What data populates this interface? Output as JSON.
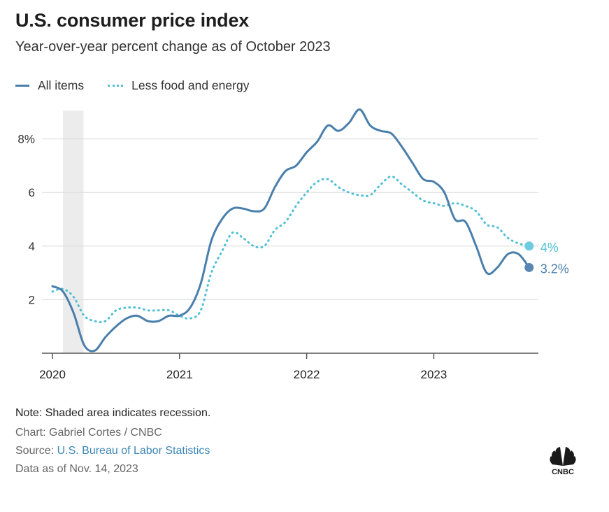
{
  "header": {
    "title": "U.S. consumer price index",
    "subtitle": "Year-over-year percent change as of October 2023"
  },
  "legend": {
    "items": [
      {
        "label": "All items",
        "style": "solid",
        "color": "#4a7fab"
      },
      {
        "label": "Less food and energy",
        "style": "dotted",
        "color": "#50c0d6"
      }
    ]
  },
  "chart_data": {
    "type": "line",
    "title": "U.S. consumer price index",
    "subtitle": "Year-over-year percent change as of October 2023",
    "xlabel": "",
    "ylabel": "",
    "x_ticks": [
      "2020",
      "2021",
      "2022",
      "2023"
    ],
    "y_ticks": [
      {
        "value": 2,
        "label": "2"
      },
      {
        "value": 4,
        "label": "4"
      },
      {
        "value": 6,
        "label": "6"
      },
      {
        "value": 8,
        "label": "8%"
      }
    ],
    "ylim": [
      0,
      9.5
    ],
    "grid": true,
    "legend_position": "top-left",
    "recession_band": {
      "start": "2020-02",
      "end": "2020-04"
    },
    "series": [
      {
        "name": "All items",
        "color": "#4a7fab",
        "end_label": "3.2%",
        "points": [
          [
            "2020-01",
            2.5
          ],
          [
            "2020-02",
            2.3
          ],
          [
            "2020-03",
            1.5
          ],
          [
            "2020-04",
            0.3
          ],
          [
            "2020-05",
            0.1
          ],
          [
            "2020-06",
            0.6
          ],
          [
            "2020-07",
            1.0
          ],
          [
            "2020-08",
            1.3
          ],
          [
            "2020-09",
            1.4
          ],
          [
            "2020-10",
            1.2
          ],
          [
            "2020-11",
            1.2
          ],
          [
            "2020-12",
            1.4
          ],
          [
            "2021-01",
            1.4
          ],
          [
            "2021-02",
            1.7
          ],
          [
            "2021-03",
            2.6
          ],
          [
            "2021-04",
            4.2
          ],
          [
            "2021-05",
            5.0
          ],
          [
            "2021-06",
            5.4
          ],
          [
            "2021-07",
            5.4
          ],
          [
            "2021-08",
            5.3
          ],
          [
            "2021-09",
            5.4
          ],
          [
            "2021-10",
            6.2
          ],
          [
            "2021-11",
            6.8
          ],
          [
            "2021-12",
            7.0
          ],
          [
            "2022-01",
            7.5
          ],
          [
            "2022-02",
            7.9
          ],
          [
            "2022-03",
            8.5
          ],
          [
            "2022-04",
            8.3
          ],
          [
            "2022-05",
            8.6
          ],
          [
            "2022-06",
            9.1
          ],
          [
            "2022-07",
            8.5
          ],
          [
            "2022-08",
            8.3
          ],
          [
            "2022-09",
            8.2
          ],
          [
            "2022-10",
            7.7
          ],
          [
            "2022-11",
            7.1
          ],
          [
            "2022-12",
            6.5
          ],
          [
            "2023-01",
            6.4
          ],
          [
            "2023-02",
            6.0
          ],
          [
            "2023-03",
            5.0
          ],
          [
            "2023-04",
            4.9
          ],
          [
            "2023-05",
            4.0
          ],
          [
            "2023-06",
            3.0
          ],
          [
            "2023-07",
            3.2
          ],
          [
            "2023-08",
            3.7
          ],
          [
            "2023-09",
            3.7
          ],
          [
            "2023-10",
            3.2
          ]
        ]
      },
      {
        "name": "Less food and energy",
        "color": "#50c0d6",
        "end_label": "4%",
        "points": [
          [
            "2020-01",
            2.3
          ],
          [
            "2020-02",
            2.4
          ],
          [
            "2020-03",
            2.1
          ],
          [
            "2020-04",
            1.4
          ],
          [
            "2020-05",
            1.2
          ],
          [
            "2020-06",
            1.2
          ],
          [
            "2020-07",
            1.6
          ],
          [
            "2020-08",
            1.7
          ],
          [
            "2020-09",
            1.7
          ],
          [
            "2020-10",
            1.6
          ],
          [
            "2020-11",
            1.6
          ],
          [
            "2020-12",
            1.6
          ],
          [
            "2021-01",
            1.4
          ],
          [
            "2021-02",
            1.3
          ],
          [
            "2021-03",
            1.6
          ],
          [
            "2021-04",
            3.0
          ],
          [
            "2021-05",
            3.8
          ],
          [
            "2021-06",
            4.5
          ],
          [
            "2021-07",
            4.3
          ],
          [
            "2021-08",
            4.0
          ],
          [
            "2021-09",
            4.0
          ],
          [
            "2021-10",
            4.6
          ],
          [
            "2021-11",
            4.9
          ],
          [
            "2021-12",
            5.5
          ],
          [
            "2022-01",
            6.0
          ],
          [
            "2022-02",
            6.4
          ],
          [
            "2022-03",
            6.5
          ],
          [
            "2022-04",
            6.2
          ],
          [
            "2022-05",
            6.0
          ],
          [
            "2022-06",
            5.9
          ],
          [
            "2022-07",
            5.9
          ],
          [
            "2022-08",
            6.3
          ],
          [
            "2022-09",
            6.6
          ],
          [
            "2022-10",
            6.3
          ],
          [
            "2022-11",
            6.0
          ],
          [
            "2022-12",
            5.7
          ],
          [
            "2023-01",
            5.6
          ],
          [
            "2023-02",
            5.5
          ],
          [
            "2023-03",
            5.6
          ],
          [
            "2023-04",
            5.5
          ],
          [
            "2023-05",
            5.3
          ],
          [
            "2023-06",
            4.8
          ],
          [
            "2023-07",
            4.7
          ],
          [
            "2023-08",
            4.3
          ],
          [
            "2023-09",
            4.1
          ],
          [
            "2023-10",
            4.0
          ]
        ]
      }
    ]
  },
  "footer": {
    "note": "Note: Shaded area indicates recession.",
    "chart_credit": "Chart: Gabriel Cortes / CNBC",
    "source_prefix": "Source: ",
    "source_link": "U.S. Bureau of Labor Statistics",
    "data_as_of": "Data as of Nov. 14, 2023",
    "logo_text": "CNBC"
  }
}
